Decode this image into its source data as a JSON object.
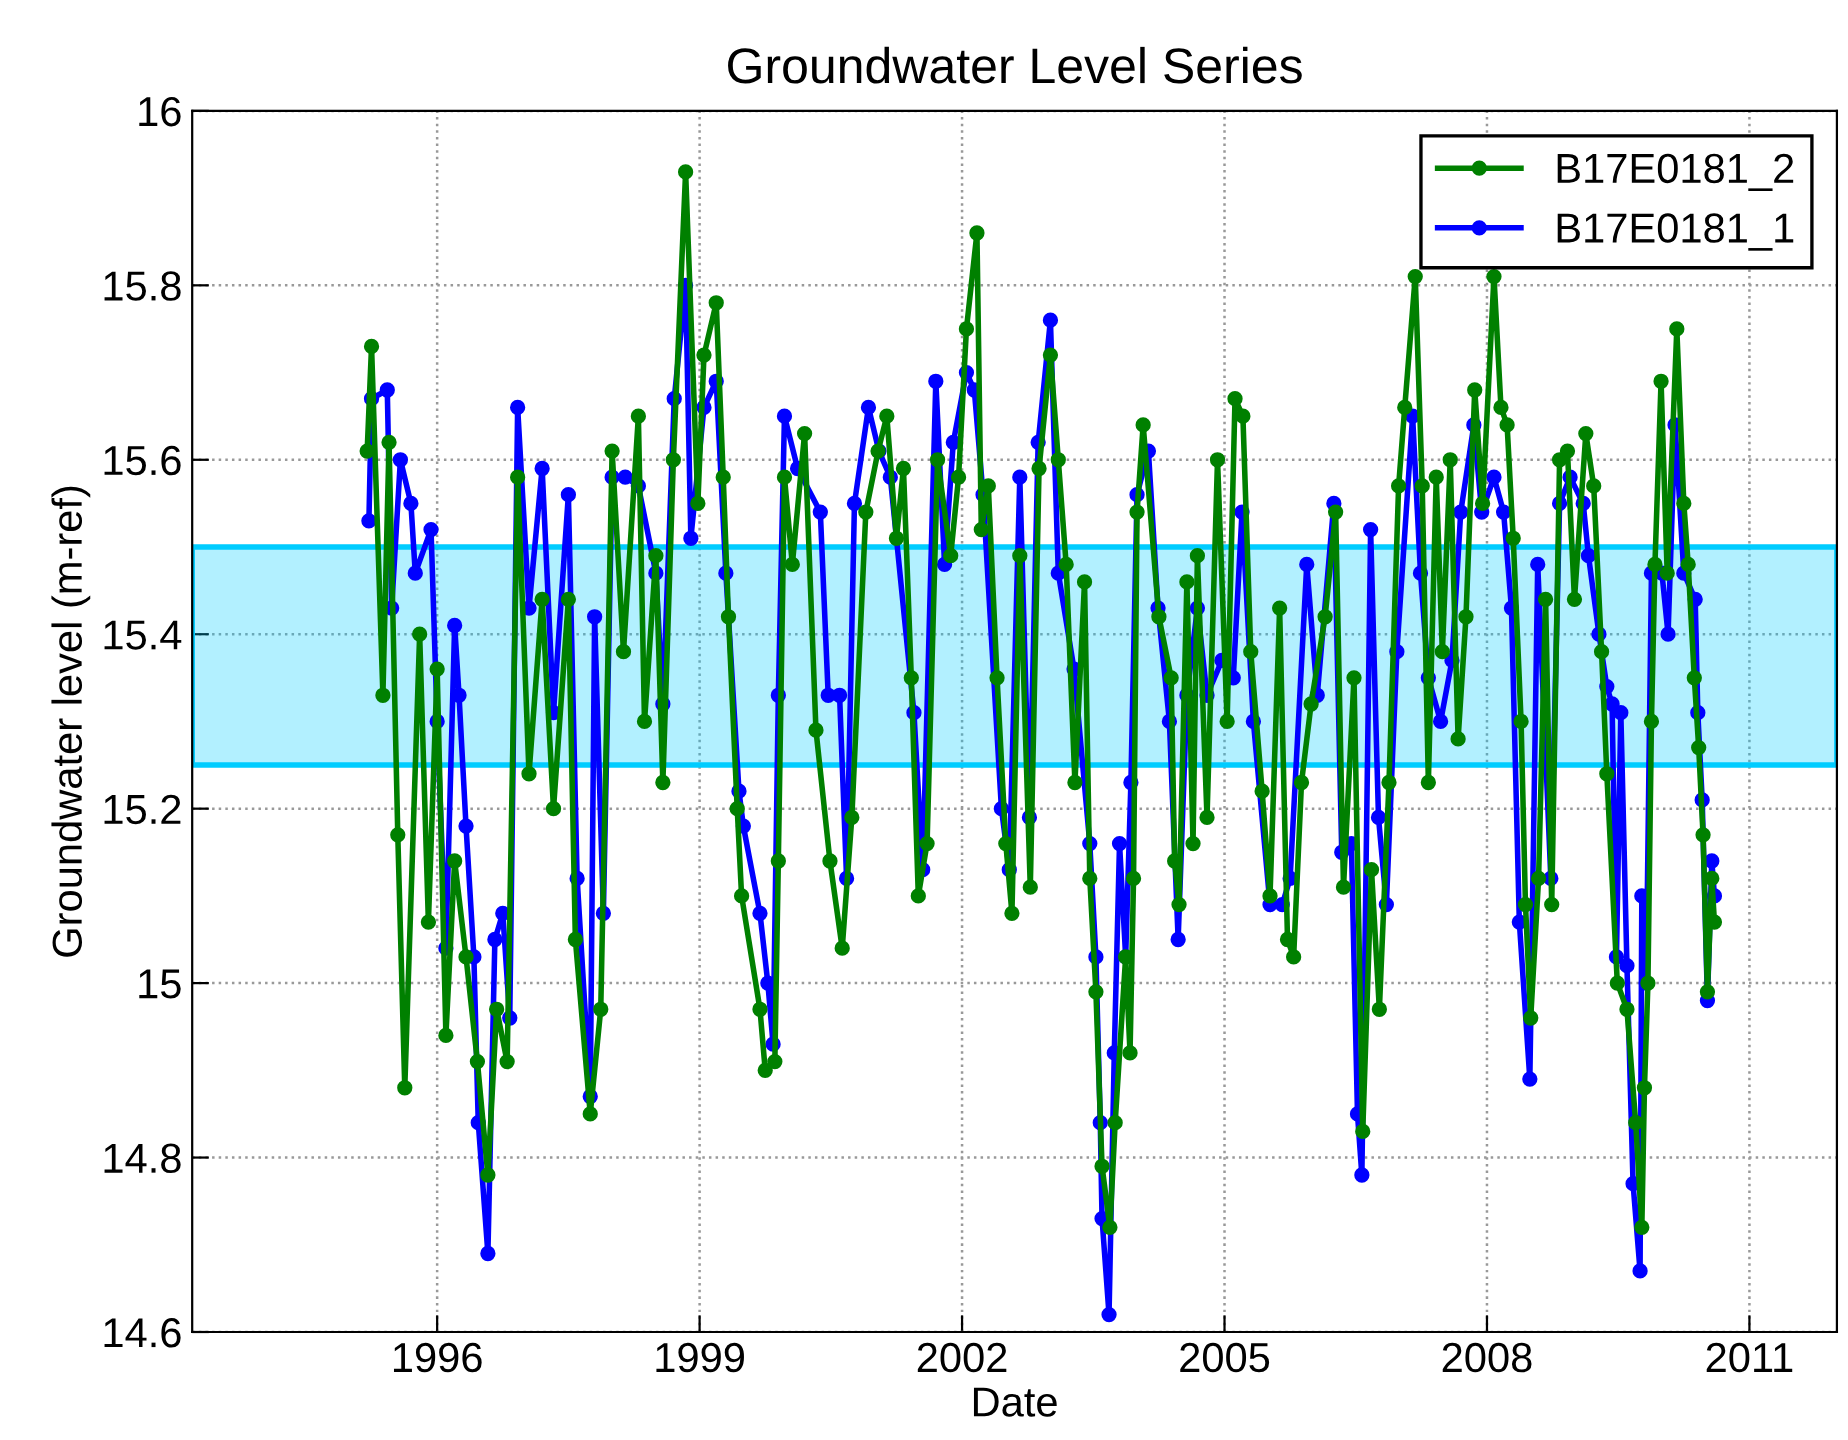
{
  "chart_data": {
    "type": "line",
    "title": "Groundwater Level Series",
    "xlabel": "Date",
    "ylabel": "Groundwater level (m-ref)",
    "xlim": [
      1993.2,
      2012.0
    ],
    "xticks": [
      1996,
      1999,
      2002,
      2005,
      2008,
      2011
    ],
    "ylim": [
      14.6,
      16
    ],
    "yticks": [
      14.6,
      14.8,
      15,
      15.2,
      15.4,
      15.6,
      15.8,
      16
    ],
    "grid": true,
    "legend": "top right",
    "marker": "circle",
    "line_style": "solid",
    "bands": [
      {
        "axis": "y",
        "from": 15.25,
        "to": 15.5,
        "color": "#00ccff"
      }
    ],
    "series": [
      {
        "name": "B17E0181_2",
        "color": "#008000",
        "x": [
          1995.2,
          1995.25,
          1995.38,
          1995.45,
          1995.55,
          1995.63,
          1995.8,
          1995.9,
          1996.0,
          1996.1,
          1996.2,
          1996.33,
          1996.46,
          1996.58,
          1996.68,
          1996.8,
          1996.92,
          1997.05,
          1997.2,
          1997.33,
          1997.5,
          1997.58,
          1997.75,
          1997.87,
          1998.0,
          1998.13,
          1998.3,
          1998.37,
          1998.5,
          1998.58,
          1998.7,
          1998.84,
          1998.98,
          1999.05,
          1999.19,
          1999.27,
          1999.33,
          1999.43,
          1999.48,
          1999.69,
          1999.75,
          1999.86,
          1999.9,
          1999.97,
          2000.06,
          2000.2,
          2000.33,
          2000.49,
          2000.63,
          2000.74,
          2000.9,
          2001.04,
          2001.14,
          2001.25,
          2001.33,
          2001.42,
          2001.5,
          2001.6,
          2001.72,
          2001.87,
          2001.96,
          2002.05,
          2002.17,
          2002.22,
          2002.3,
          2002.4,
          2002.5,
          2002.57,
          2002.66,
          2002.78,
          2002.88,
          2003.01,
          2003.1,
          2003.19,
          2003.29,
          2003.4,
          2003.46,
          2003.53,
          2003.6,
          2003.69,
          2003.75,
          2003.87,
          2003.92,
          2003.96,
          2004.0,
          2004.07,
          2004.25,
          2004.39,
          2004.43,
          2004.48,
          2004.57,
          2004.64,
          2004.69,
          2004.8,
          2004.92,
          2005.03,
          2005.12,
          2005.21,
          2005.3,
          2005.43,
          2005.52,
          2005.63,
          2005.72,
          2005.79,
          2005.88,
          2005.99,
          2006.15,
          2006.27,
          2006.36,
          2006.48,
          2006.58,
          2006.68,
          2006.77,
          2006.88,
          2006.99,
          2007.06,
          2007.18,
          2007.26,
          2007.33,
          2007.42,
          2007.49,
          2007.58,
          2007.67,
          2007.76,
          2007.86,
          2007.95,
          2008.08,
          2008.16,
          2008.23,
          2008.3,
          2008.39,
          2008.44,
          2008.5,
          2008.59,
          2008.67,
          2008.74,
          2008.83,
          2008.92,
          2009.0,
          2009.13,
          2009.22,
          2009.31,
          2009.37,
          2009.49,
          2009.6,
          2009.7,
          2009.77,
          2009.8,
          2009.84,
          2009.88,
          2009.92,
          2009.99,
          2010.06,
          2010.17,
          2010.25,
          2010.3,
          2010.37,
          2010.42,
          2010.47,
          2010.52,
          2010.57,
          2010.6
        ],
        "values": [
          15.61,
          15.73,
          15.33,
          15.62,
          15.17,
          14.88,
          15.4,
          15.07,
          15.36,
          14.94,
          15.14,
          15.03,
          14.91,
          14.78,
          14.97,
          14.91,
          15.58,
          15.24,
          15.44,
          15.2,
          15.44,
          15.05,
          14.85,
          14.97,
          15.61,
          15.38,
          15.65,
          15.3,
          15.49,
          15.23,
          15.6,
          15.93,
          15.55,
          15.72,
          15.78,
          15.58,
          15.42,
          15.2,
          15.1,
          14.97,
          14.9,
          14.91,
          15.14,
          15.58,
          15.48,
          15.63,
          15.29,
          15.14,
          15.04,
          15.19,
          15.54,
          15.61,
          15.65,
          15.51,
          15.59,
          15.35,
          15.1,
          15.16,
          15.6,
          15.49,
          15.58,
          15.75,
          15.86,
          15.52,
          15.57,
          15.35,
          15.16,
          15.08,
          15.49,
          15.11,
          15.59,
          15.72,
          15.6,
          15.48,
          15.23,
          15.46,
          15.12,
          14.99,
          14.79,
          14.72,
          14.84,
          15.03,
          14.92,
          15.12,
          15.54,
          15.64,
          15.42,
          15.35,
          15.14,
          15.09,
          15.46,
          15.16,
          15.49,
          15.19,
          15.6,
          15.3,
          15.67,
          15.65,
          15.38,
          15.22,
          15.1,
          15.43,
          15.05,
          15.03,
          15.23,
          15.32,
          15.42,
          15.54,
          15.11,
          15.35,
          14.83,
          15.13,
          14.97,
          15.23,
          15.57,
          15.66,
          15.81,
          15.57,
          15.23,
          15.58,
          15.38,
          15.6,
          15.28,
          15.42,
          15.68,
          15.55,
          15.81,
          15.66,
          15.64,
          15.51,
          15.3,
          15.09,
          14.96,
          15.12,
          15.44,
          15.09,
          15.6,
          15.61,
          15.44,
          15.63,
          15.57,
          15.38,
          15.24,
          15.0,
          14.97,
          14.84,
          14.72,
          14.88,
          15.0,
          15.3,
          15.48,
          15.69,
          15.47,
          15.75,
          15.55,
          15.48,
          15.35,
          15.27,
          15.17,
          14.99,
          15.12,
          15.07
        ]
      },
      {
        "name": "B17E0181_1",
        "color": "#0000ff",
        "x": [
          1995.22,
          1995.25,
          1995.43,
          1995.48,
          1995.58,
          1995.7,
          1995.75,
          1995.93,
          1996.0,
          1996.1,
          1996.2,
          1996.25,
          1996.33,
          1996.42,
          1996.47,
          1996.58,
          1996.66,
          1996.75,
          1996.83,
          1996.92,
          1997.05,
          1997.2,
          1997.33,
          1997.5,
          1997.6,
          1997.75,
          1997.8,
          1997.9,
          1998.0,
          1998.15,
          1998.3,
          1998.5,
          1998.58,
          1998.71,
          1998.84,
          1998.9,
          1999.05,
          1999.19,
          1999.3,
          1999.45,
          1999.5,
          1999.69,
          1999.78,
          1999.84,
          1999.9,
          1999.97,
          2000.12,
          2000.38,
          2000.47,
          2000.6,
          2000.68,
          2000.77,
          2000.93,
          2001.05,
          2001.18,
          2001.45,
          2001.55,
          2001.7,
          2001.8,
          2001.9,
          2002.05,
          2002.14,
          2002.24,
          2002.45,
          2002.54,
          2002.66,
          2002.77,
          2002.87,
          2003.01,
          2003.1,
          2003.28,
          2003.46,
          2003.53,
          2003.58,
          2003.6,
          2003.68,
          2003.74,
          2003.8,
          2003.87,
          2003.93,
          2004.0,
          2004.13,
          2004.24,
          2004.37,
          2004.47,
          2004.57,
          2004.69,
          2004.8,
          2004.97,
          2005.1,
          2005.2,
          2005.33,
          2005.52,
          2005.66,
          2005.75,
          2005.94,
          2006.06,
          2006.25,
          2006.34,
          2006.45,
          2006.52,
          2006.57,
          2006.67,
          2006.76,
          2006.85,
          2006.97,
          2007.15,
          2007.24,
          2007.33,
          2007.47,
          2007.6,
          2007.7,
          2007.85,
          2007.94,
          2008.08,
          2008.19,
          2008.28,
          2008.37,
          2008.49,
          2008.58,
          2008.73,
          2008.83,
          2008.95,
          2009.1,
          2009.16,
          2009.28,
          2009.37,
          2009.43,
          2009.48,
          2009.53,
          2009.6,
          2009.67,
          2009.75,
          2009.77,
          2009.82,
          2009.88,
          2010.0,
          2010.07,
          2010.15,
          2010.25,
          2010.38,
          2010.41,
          2010.46,
          2010.52,
          2010.57,
          2010.6
        ],
        "values": [
          15.53,
          15.67,
          15.68,
          15.43,
          15.6,
          15.55,
          15.47,
          15.52,
          15.3,
          15.04,
          15.41,
          15.33,
          15.18,
          15.03,
          14.84,
          14.69,
          15.05,
          15.08,
          14.96,
          15.66,
          15.43,
          15.59,
          15.31,
          15.56,
          15.12,
          14.87,
          15.42,
          15.08,
          15.58,
          15.58,
          15.57,
          15.47,
          15.32,
          15.67,
          15.8,
          15.51,
          15.66,
          15.69,
          15.47,
          15.22,
          15.18,
          15.08,
          15.0,
          14.93,
          15.33,
          15.65,
          15.59,
          15.54,
          15.33,
          15.33,
          15.12,
          15.55,
          15.66,
          15.61,
          15.58,
          15.31,
          15.13,
          15.69,
          15.48,
          15.62,
          15.7,
          15.68,
          15.56,
          15.2,
          15.13,
          15.58,
          15.19,
          15.62,
          15.76,
          15.47,
          15.36,
          15.16,
          15.03,
          14.84,
          14.73,
          14.62,
          14.92,
          15.16,
          15.03,
          15.23,
          15.56,
          15.61,
          15.43,
          15.3,
          15.05,
          15.33,
          15.43,
          15.33,
          15.37,
          15.35,
          15.54,
          15.3,
          15.09,
          15.09,
          15.12,
          15.48,
          15.33,
          15.55,
          15.15,
          15.16,
          14.85,
          14.78,
          15.52,
          15.19,
          15.09,
          15.38,
          15.65,
          15.47,
          15.35,
          15.3,
          15.37,
          15.54,
          15.64,
          15.54,
          15.58,
          15.54,
          15.43,
          15.07,
          14.89,
          15.48,
          15.12,
          15.55,
          15.58,
          15.55,
          15.49,
          15.4,
          15.34,
          15.32,
          15.03,
          15.31,
          15.02,
          14.77,
          14.67,
          15.1,
          15.0,
          15.47,
          15.47,
          15.4,
          15.64,
          15.47,
          15.44,
          15.31,
          15.21,
          14.98,
          15.14,
          15.1
        ]
      }
    ]
  }
}
